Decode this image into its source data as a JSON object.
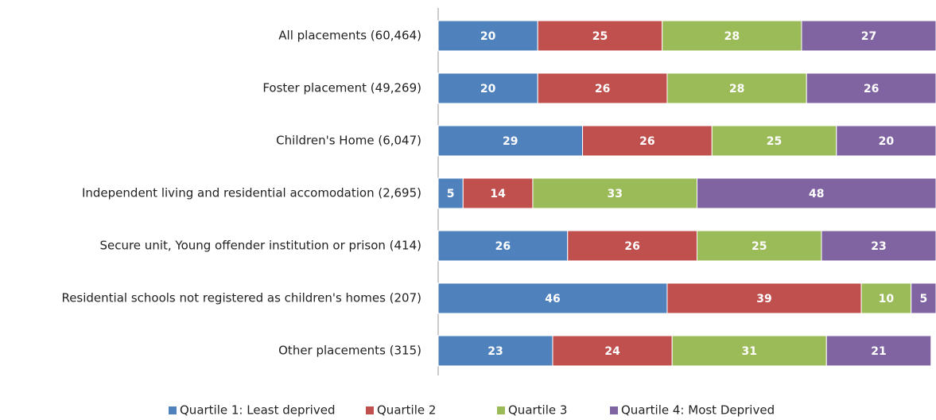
{
  "chart_data": {
    "type": "bar",
    "orientation": "horizontal",
    "stacked": true,
    "categories": [
      "All placements (60,464)",
      "Foster placement (49,269)",
      "Children's Home (6,047)",
      "Independent living and residential accomodation (2,695)",
      "Secure unit, Young offender institution or prison (414)",
      "Residential schools not registered as children's homes (207)",
      "Other placements (315)"
    ],
    "series": [
      {
        "name": "Quartile 1: Least deprived",
        "color": "#4f81bd",
        "values": [
          20,
          20,
          29,
          5,
          26,
          46,
          23
        ]
      },
      {
        "name": "Quartile 2",
        "color": "#c0504d",
        "values": [
          25,
          26,
          26,
          14,
          26,
          39,
          24
        ]
      },
      {
        "name": "Quartile 3",
        "color": "#9bbb59",
        "values": [
          28,
          28,
          25,
          33,
          25,
          10,
          31
        ]
      },
      {
        "name": "Quartile 4: Most Deprived",
        "color": "#8064a2",
        "values": [
          27,
          26,
          20,
          48,
          23,
          5,
          21
        ]
      }
    ],
    "xlim": [
      0,
      100
    ],
    "legend": "bottom"
  }
}
